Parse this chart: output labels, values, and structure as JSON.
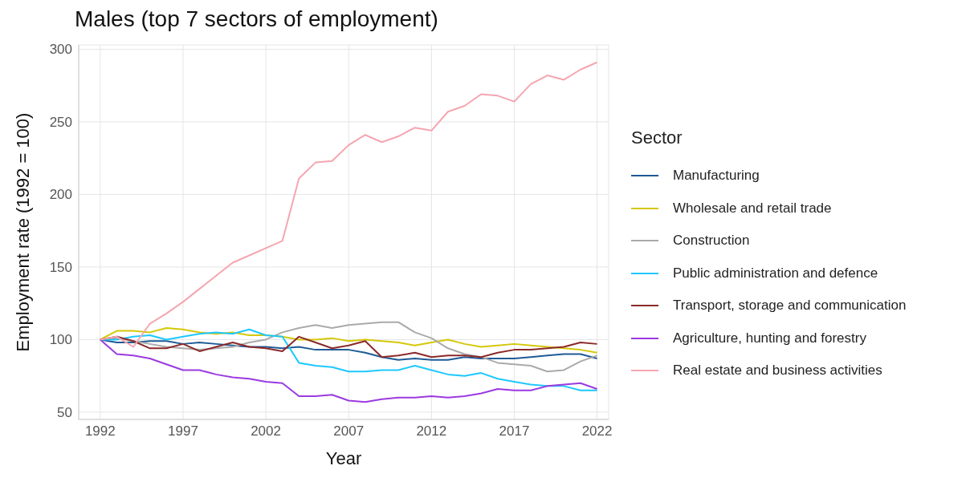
{
  "chart_data": {
    "type": "line",
    "title": "Males (top 7 sectors of employment)",
    "xlabel": "Year",
    "ylabel": "Employment rate (1992 = 100)",
    "legend_title": "Sector",
    "legend": "right",
    "grid": true,
    "marker": "none",
    "line_style": "solid",
    "x": [
      1992,
      1993,
      1994,
      1995,
      1996,
      1997,
      1998,
      1999,
      2000,
      2001,
      2002,
      2003,
      2004,
      2005,
      2006,
      2007,
      2008,
      2009,
      2010,
      2011,
      2012,
      2013,
      2014,
      2015,
      2016,
      2017,
      2018,
      2019,
      2020,
      2021,
      2022
    ],
    "xlim": [
      1990.7,
      2022.7
    ],
    "xticks": [
      1992,
      1997,
      2002,
      2007,
      2012,
      2017,
      2022
    ],
    "ylim": [
      45,
      303
    ],
    "yticks": [
      50,
      100,
      150,
      200,
      250,
      300
    ],
    "series": [
      {
        "name": "Manufacturing",
        "color": "#1f5a96",
        "values": [
          100,
          98,
          98,
          99,
          99,
          97,
          98,
          97,
          96,
          95,
          95,
          94,
          95,
          93,
          93,
          93,
          91,
          88,
          86,
          87,
          86,
          86,
          88,
          87,
          87,
          87,
          88,
          89,
          90,
          90,
          87
        ]
      },
      {
        "name": "Wholesale and retail trade",
        "color": "#d4c80a",
        "values": [
          100,
          106,
          106,
          105,
          108,
          107,
          105,
          104,
          105,
          103,
          103,
          102,
          100,
          100,
          101,
          99,
          100,
          99,
          98,
          96,
          98,
          100,
          97,
          95,
          96,
          97,
          96,
          95,
          94,
          93,
          91
        ]
      },
      {
        "name": "Construction",
        "color": "#aaaaaa",
        "values": [
          100,
          101,
          99,
          97,
          95,
          94,
          93,
          94,
          95,
          98,
          100,
          105,
          108,
          110,
          108,
          110,
          111,
          112,
          112,
          105,
          101,
          94,
          90,
          88,
          84,
          83,
          82,
          78,
          79,
          85,
          89
        ]
      },
      {
        "name": "Public administration and defence",
        "color": "#1ec8ff",
        "values": [
          100,
          100,
          102,
          103,
          100,
          102,
          104,
          105,
          104,
          107,
          103,
          102,
          84,
          82,
          81,
          78,
          78,
          79,
          79,
          82,
          79,
          76,
          75,
          77,
          73,
          71,
          69,
          68,
          68,
          65,
          65
        ]
      },
      {
        "name": "Transport, storage and communication",
        "color": "#8b2a2a",
        "values": [
          100,
          102,
          99,
          94,
          94,
          97,
          92,
          95,
          98,
          95,
          94,
          92,
          102,
          98,
          94,
          96,
          99,
          88,
          89,
          91,
          88,
          89,
          89,
          88,
          91,
          93,
          93,
          94,
          95,
          98,
          97
        ]
      },
      {
        "name": "Agriculture, hunting and forestry",
        "color": "#9b3ae0",
        "values": [
          100,
          90,
          89,
          87,
          83,
          79,
          79,
          76,
          74,
          73,
          71,
          70,
          61,
          61,
          62,
          58,
          57,
          59,
          60,
          60,
          61,
          60,
          61,
          63,
          66,
          65,
          65,
          68,
          69,
          70,
          66
        ]
      },
      {
        "name": "Real estate and business activities",
        "color": "#f4a6b0",
        "values": [
          100,
          102,
          95,
          111,
          118,
          126,
          135,
          144,
          153,
          158,
          163,
          168,
          211,
          222,
          223,
          234,
          241,
          236,
          240,
          246,
          244,
          257,
          261,
          269,
          268,
          264,
          276,
          282,
          279,
          286,
          291
        ]
      }
    ]
  }
}
